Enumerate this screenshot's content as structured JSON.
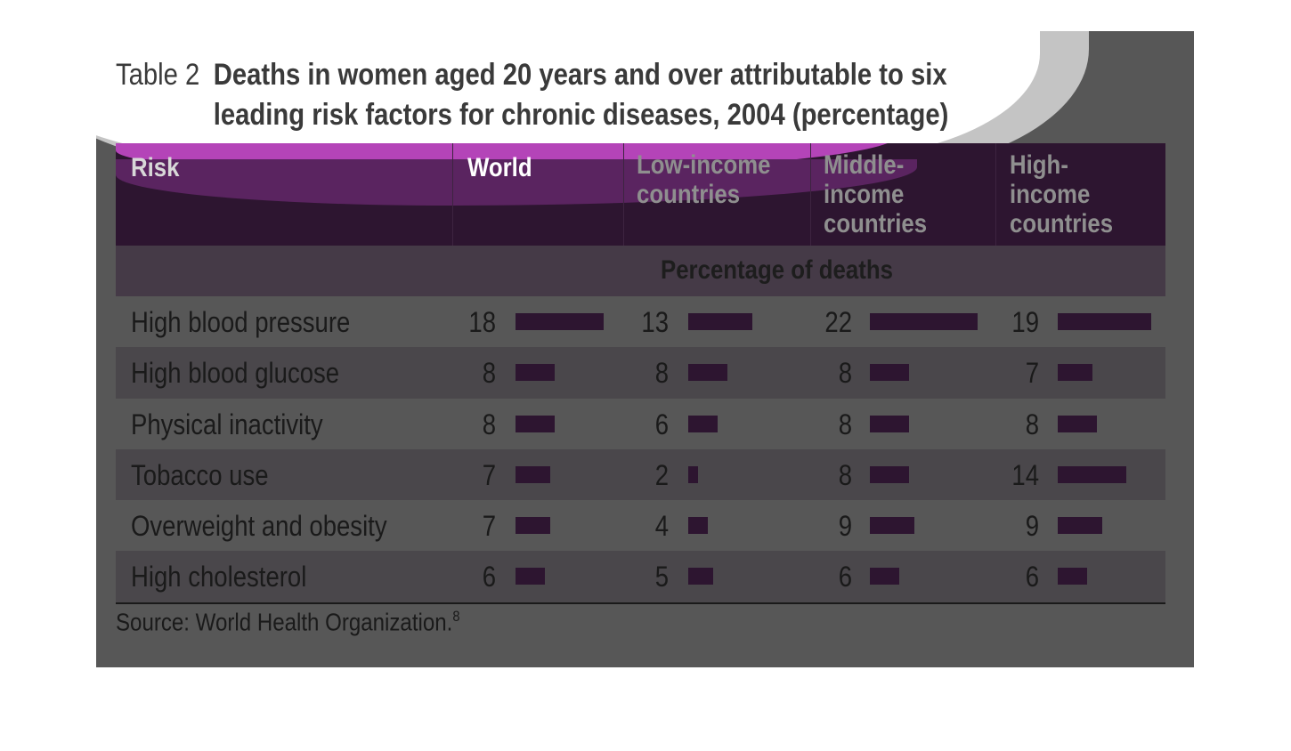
{
  "title": {
    "label": "Table 2",
    "text": "Deaths in women aged 20 years and over attributable to six leading risk factors for chronic diseases, 2004 (percentage)"
  },
  "headers": {
    "risk": "Risk",
    "columns": [
      "World",
      "Low-income countries",
      "Middle-income countries",
      "High-income countries"
    ]
  },
  "subheader": "Percentage of deaths",
  "rows": [
    {
      "risk": "High blood pressure",
      "values": [
        18,
        13,
        22,
        19
      ]
    },
    {
      "risk": "High blood glucose",
      "values": [
        8,
        8,
        8,
        7
      ]
    },
    {
      "risk": "Physical inactivity",
      "values": [
        8,
        6,
        8,
        8
      ]
    },
    {
      "risk": "Tobacco use",
      "values": [
        7,
        2,
        8,
        14
      ]
    },
    {
      "risk": "Overweight and obesity",
      "values": [
        7,
        4,
        9,
        9
      ]
    },
    {
      "risk": "High cholesterol",
      "values": [
        6,
        5,
        6,
        6
      ]
    }
  ],
  "source": {
    "text": "Source: World Health Organization.",
    "note": "8"
  },
  "colors": {
    "bar": "#2d1530",
    "header_background": "#2d1530"
  }
}
